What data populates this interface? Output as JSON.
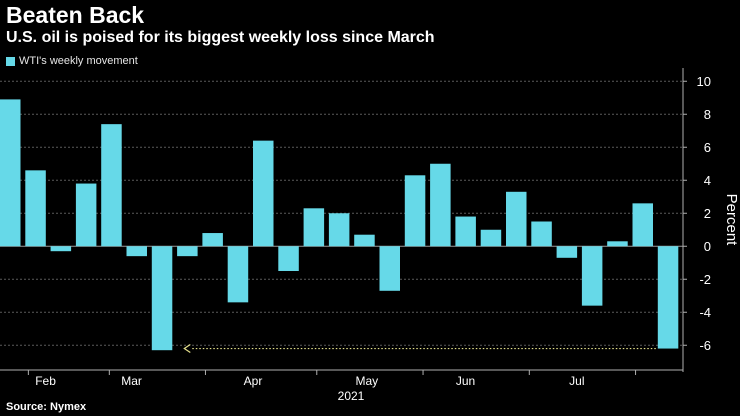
{
  "header": {
    "title": "Beaten Back",
    "subtitle": "U.S. oil is poised for its biggest weekly loss since March"
  },
  "footer": {
    "source": "Source: Nymex"
  },
  "colors": {
    "bar": "#66d9e8",
    "background": "#000000",
    "grid": "#5a5a5a",
    "arrow": "#e4e08c",
    "text": "#ffffff",
    "axis": "#b0b0b0"
  },
  "chart_data": {
    "type": "bar",
    "title": "Beaten Back",
    "subtitle": "U.S. oil is poised for its biggest weekly loss since March",
    "legend": [
      "WTI's weekly movement"
    ],
    "legend_position": "top-left",
    "ylabel": "Percent",
    "xlabel": "2021",
    "ylim": [
      -7.5,
      10.5
    ],
    "yticks": [
      10,
      8,
      6,
      4,
      2,
      0,
      -2,
      -4,
      -6
    ],
    "grid": true,
    "x_month_labels": [
      "Feb",
      "Mar",
      "Apr",
      "May",
      "Jun",
      "Jul"
    ],
    "x_year_label": "2021",
    "series": [
      {
        "name": "WTI's weekly movement",
        "values": [
          8.9,
          4.6,
          -0.3,
          3.8,
          7.4,
          -0.6,
          -6.3,
          -0.6,
          0.8,
          -3.4,
          6.4,
          -1.5,
          2.3,
          2.0,
          0.7,
          -2.7,
          4.3,
          5.0,
          1.8,
          1.0,
          3.3,
          1.5,
          -0.7,
          -3.6,
          0.3,
          2.6,
          -6.2
        ]
      }
    ],
    "annotation": {
      "type": "dotted-arrow",
      "from_week_index": 26,
      "to_week_index": 6,
      "y_value": -6.2
    }
  }
}
